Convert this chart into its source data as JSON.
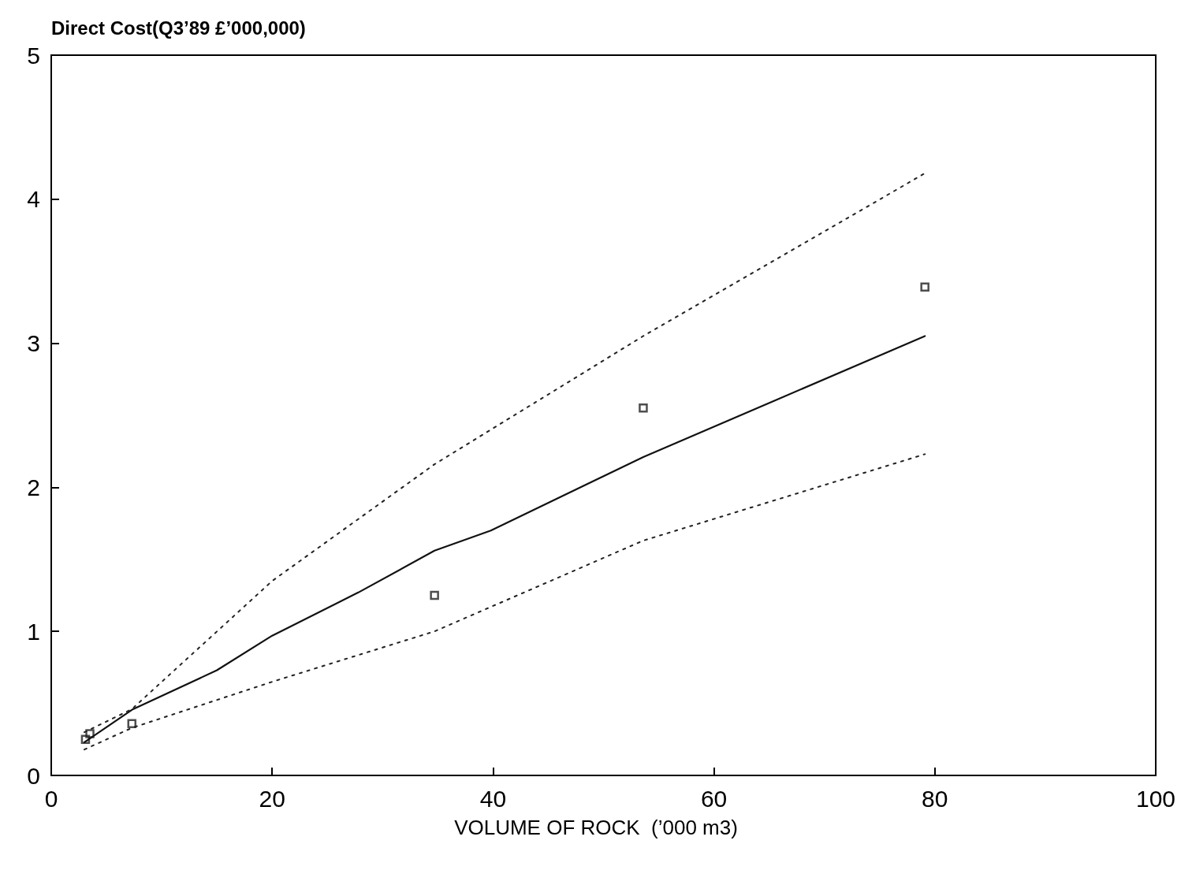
{
  "chart_data": {
    "type": "scatter",
    "ylabel": "Direct Cost(Q3’89 £’000,000)",
    "xlabel": "VOLUME OF ROCK  (’000 m3)",
    "xlim": [
      0,
      100
    ],
    "ylim": [
      0,
      5
    ],
    "xticks": [
      0,
      20,
      40,
      60,
      80,
      100
    ],
    "yticks": [
      0,
      1,
      2,
      3,
      4,
      5
    ],
    "grid": false,
    "series": [
      {
        "color": "#222222",
        "marker": "square",
        "x": [
          3.1,
          3.5,
          7.3,
          34.7,
          53.6,
          79.1
        ],
        "values": [
          0.25,
          0.29,
          0.36,
          1.25,
          2.55,
          3.39
        ]
      },
      {
        "type": "line",
        "color": "#111111",
        "line_style": "solid",
        "marker": "none",
        "x": [
          3,
          7.4,
          15,
          20,
          27.8,
          34.7,
          39.8,
          53.6,
          79.1
        ],
        "values": [
          0.23,
          0.46,
          0.73,
          0.97,
          1.27,
          1.56,
          1.7,
          2.21,
          3.05
        ]
      },
      {
        "type": "line",
        "color": "#222222",
        "line_style": "dotted",
        "marker": "none",
        "x": [
          3,
          7.3,
          20,
          34.7,
          53.6,
          79.1
        ],
        "values": [
          0.3,
          0.46,
          1.35,
          2.16,
          3.05,
          4.18
        ]
      },
      {
        "type": "line",
        "color": "#222222",
        "line_style": "dotted",
        "marker": "none",
        "x": [
          3,
          7.3,
          20,
          34.7,
          53.6,
          79.1
        ],
        "values": [
          0.18,
          0.33,
          0.65,
          1.0,
          1.63,
          2.23
        ]
      }
    ]
  }
}
